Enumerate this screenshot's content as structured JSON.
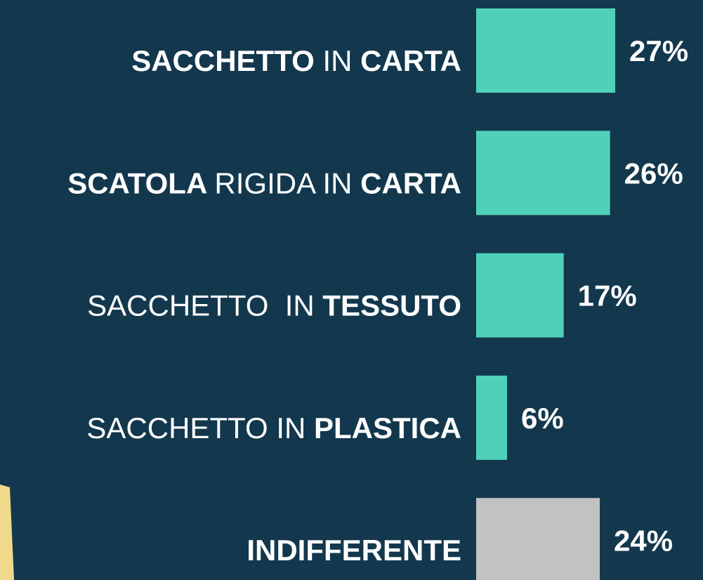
{
  "chart_data": {
    "type": "barh",
    "categories": [
      [
        {
          "text": "SACCHETTO",
          "weight": "bold"
        },
        {
          "text": "IN",
          "weight": "light"
        },
        {
          "text": "CARTA",
          "weight": "bold"
        }
      ],
      [
        {
          "text": "SCATOLA",
          "weight": "bold"
        },
        {
          "text": "RIGIDA IN",
          "weight": "light"
        },
        {
          "text": "CARTA",
          "weight": "bold"
        }
      ],
      [
        {
          "text": "SACCHETTO  IN",
          "weight": "light"
        },
        {
          "text": "TESSUTO",
          "weight": "bold"
        }
      ],
      [
        {
          "text": "SACCHETTO IN",
          "weight": "light"
        },
        {
          "text": "PLASTICA",
          "weight": "bold"
        }
      ],
      [
        {
          "text": "INDIFFERENTE",
          "weight": "bold"
        }
      ]
    ],
    "values": [
      27,
      26,
      17,
      6,
      24
    ],
    "value_labels": [
      "27%",
      "26%",
      "17%",
      "6%",
      "24%"
    ],
    "colors": [
      "#4fd1b9",
      "#4fd1b9",
      "#4fd1b9",
      "#4fd1b9",
      "#c2c2c2"
    ],
    "xlim": [
      0,
      30
    ]
  }
}
